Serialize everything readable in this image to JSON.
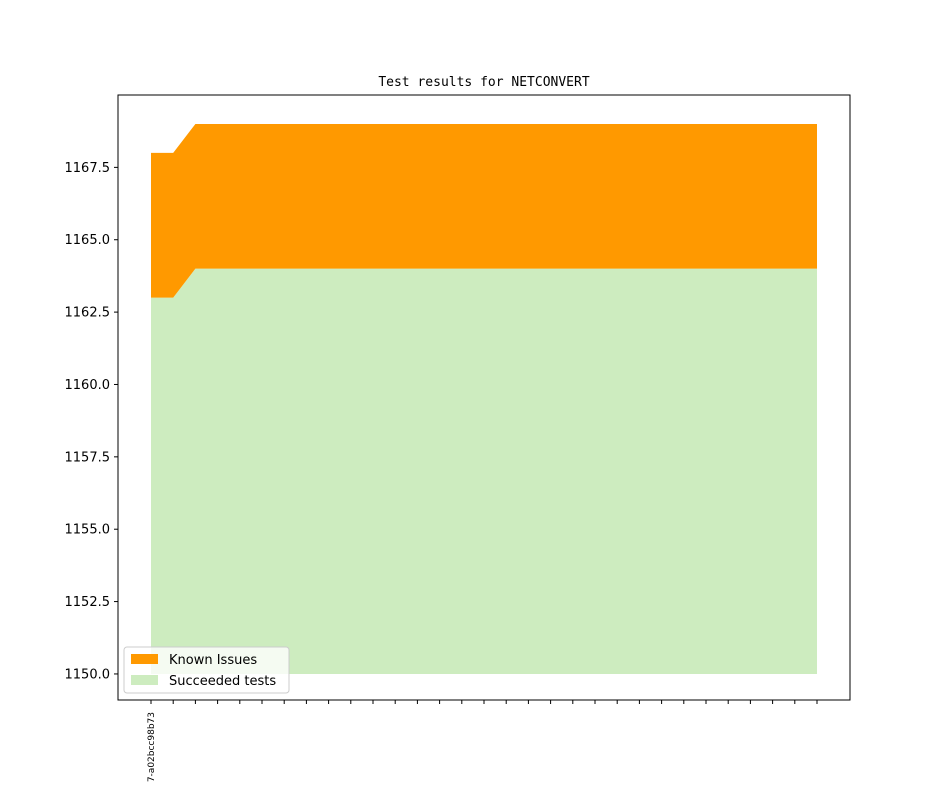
{
  "chart_data": {
    "type": "area",
    "title": "Test results for NETCONVERT",
    "xlabel": "",
    "ylabel": "",
    "x_tick_count": 31,
    "x_tick_labels": [
      "7-a02bcc98b73"
    ],
    "series": [
      {
        "name": "Succeeded tests",
        "color": "#cdecbf",
        "values": [
          1163,
          1163,
          1164,
          1164,
          1164,
          1164,
          1164,
          1164,
          1164,
          1164,
          1164,
          1164,
          1164,
          1164,
          1164,
          1164,
          1164,
          1164,
          1164,
          1164,
          1164,
          1164,
          1164,
          1164,
          1164,
          1164,
          1164,
          1164,
          1164,
          1164,
          1164
        ]
      },
      {
        "name": "Known Issues",
        "color": "#ff9900",
        "values": [
          1168,
          1168,
          1169,
          1169,
          1169,
          1169,
          1169,
          1169,
          1169,
          1169,
          1169,
          1169,
          1169,
          1169,
          1169,
          1169,
          1169,
          1169,
          1169,
          1169,
          1169,
          1169,
          1169,
          1169,
          1169,
          1169,
          1169,
          1169,
          1169,
          1169,
          1169
        ]
      }
    ],
    "baseline": 1150,
    "ylim": [
      1149.1,
      1170.0
    ],
    "y_ticks": [
      1150.0,
      1152.5,
      1155.0,
      1157.5,
      1160.0,
      1162.5,
      1165.0,
      1167.5
    ],
    "legend": {
      "placement": "lower-left",
      "entries": [
        "Known Issues",
        "Succeeded tests"
      ]
    },
    "grid": false
  }
}
